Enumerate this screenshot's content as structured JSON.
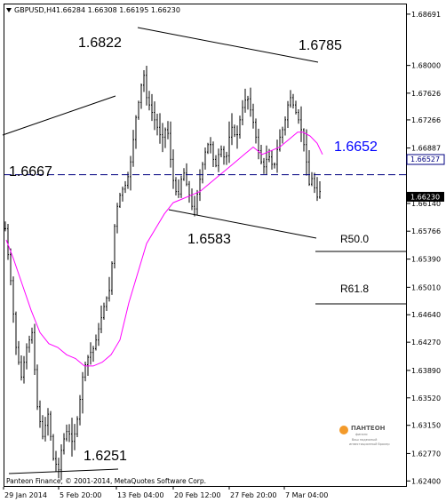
{
  "header": {
    "symbol": "GBPUSD,H4",
    "ohlc": "1.66284 1.66308 1.66195 1.66230"
  },
  "footer": "Panteon Finance, © 2001-2014, MetaQuotes Software Corp.",
  "logo": {
    "name": "ПАНТЕОН",
    "sub": "финанс",
    "tagline1": "Ваш надежный",
    "tagline2": "инвестиционный брокер"
  },
  "colors": {
    "price_bars": "#000000",
    "moving_average": "#ff00ff",
    "level_line": "#000080",
    "current_price_box": "#000000",
    "annotation_blue": "#0000ff"
  },
  "chart_data": {
    "type": "bar",
    "symbol": "GBPUSD",
    "timeframe": "H4",
    "ylim": [
      1.6238,
      1.6869
    ],
    "y_ticks": [
      "1.68691",
      "1.68000",
      "1.67626",
      "1.67266",
      "1.66887",
      "1.66527",
      "1.66230",
      "1.66140",
      "1.65766",
      "1.65390",
      "1.65010",
      "1.64640",
      "1.64270",
      "1.63890",
      "1.63520",
      "1.63150",
      "1.62770",
      "1.62400"
    ],
    "x_ticks": [
      "29 Jan 2014",
      "5 Feb 20:00",
      "13 Feb 04:00",
      "20 Feb 12:00",
      "27 Feb 20:00",
      "7 Mar 04:00"
    ],
    "current_price": "1.66230",
    "level_price": "1.66527",
    "annotations": {
      "high": "1.6822",
      "high2": "1.6785",
      "level_left": "1.6667",
      "level_right": "1.6652",
      "low_mid": "1.6583",
      "low": "1.6251",
      "fib50": "R50.0",
      "fib618": "R61.8"
    },
    "grid": false,
    "price_path": [
      [
        0,
        1.658
      ],
      [
        6,
        1.651
      ],
      [
        12,
        1.642
      ],
      [
        18,
        1.638
      ],
      [
        24,
        1.642
      ],
      [
        30,
        1.644
      ],
      [
        36,
        1.634
      ],
      [
        42,
        1.63
      ],
      [
        48,
        1.633
      ],
      [
        54,
        1.627
      ],
      [
        60,
        1.6255
      ],
      [
        64,
        1.629
      ],
      [
        70,
        1.631
      ],
      [
        76,
        1.629
      ],
      [
        82,
        1.633
      ],
      [
        88,
        1.639
      ],
      [
        94,
        1.641
      ],
      [
        100,
        1.642
      ],
      [
        106,
        1.645
      ],
      [
        112,
        1.648
      ],
      [
        118,
        1.65
      ],
      [
        124,
        1.66
      ],
      [
        130,
        1.663
      ],
      [
        136,
        1.664
      ],
      [
        140,
        1.666
      ],
      [
        144,
        1.67
      ],
      [
        148,
        1.674
      ],
      [
        152,
        1.676
      ],
      [
        155,
        1.68
      ],
      [
        158,
        1.676
      ],
      [
        164,
        1.674
      ],
      [
        170,
        1.672
      ],
      [
        176,
        1.67
      ],
      [
        182,
        1.672
      ],
      [
        188,
        1.665
      ],
      [
        194,
        1.662
      ],
      [
        200,
        1.666
      ],
      [
        206,
        1.663
      ],
      [
        212,
        1.66
      ],
      [
        218,
        1.664
      ],
      [
        224,
        1.668
      ],
      [
        230,
        1.67
      ],
      [
        236,
        1.666
      ],
      [
        242,
        1.669
      ],
      [
        248,
        1.667
      ],
      [
        254,
        1.672
      ],
      [
        260,
        1.67
      ],
      [
        266,
        1.674
      ],
      [
        272,
        1.676
      ],
      [
        278,
        1.673
      ],
      [
        284,
        1.669
      ],
      [
        290,
        1.666
      ],
      [
        296,
        1.668
      ],
      [
        302,
        1.666
      ],
      [
        308,
        1.67
      ],
      [
        314,
        1.672
      ],
      [
        320,
        1.676
      ],
      [
        326,
        1.674
      ],
      [
        332,
        1.672
      ],
      [
        338,
        1.668
      ],
      [
        342,
        1.664
      ],
      [
        346,
        1.665
      ],
      [
        350,
        1.662
      ],
      [
        354,
        1.663
      ],
      [
        358,
        1.6623
      ]
    ],
    "ma_path": [
      [
        2,
        1.6565
      ],
      [
        10,
        1.654
      ],
      [
        20,
        1.6505
      ],
      [
        30,
        1.647
      ],
      [
        40,
        1.644
      ],
      [
        50,
        1.6425
      ],
      [
        60,
        1.642
      ],
      [
        70,
        1.641
      ],
      [
        80,
        1.6405
      ],
      [
        90,
        1.6395
      ],
      [
        100,
        1.6395
      ],
      [
        110,
        1.64
      ],
      [
        120,
        1.641
      ],
      [
        130,
        1.643
      ],
      [
        140,
        1.648
      ],
      [
        150,
        1.652
      ],
      [
        160,
        1.656
      ],
      [
        170,
        1.658
      ],
      [
        180,
        1.66
      ],
      [
        190,
        1.6615
      ],
      [
        200,
        1.662
      ],
      [
        210,
        1.6625
      ],
      [
        220,
        1.663
      ],
      [
        230,
        1.664
      ],
      [
        240,
        1.665
      ],
      [
        250,
        1.666
      ],
      [
        260,
        1.667
      ],
      [
        270,
        1.668
      ],
      [
        280,
        1.669
      ],
      [
        290,
        1.668
      ],
      [
        300,
        1.6685
      ],
      [
        310,
        1.669
      ],
      [
        320,
        1.67
      ],
      [
        330,
        1.671
      ],
      [
        336,
        1.671
      ],
      [
        344,
        1.6705
      ],
      [
        352,
        1.6695
      ],
      [
        358,
        1.668
      ]
    ]
  }
}
